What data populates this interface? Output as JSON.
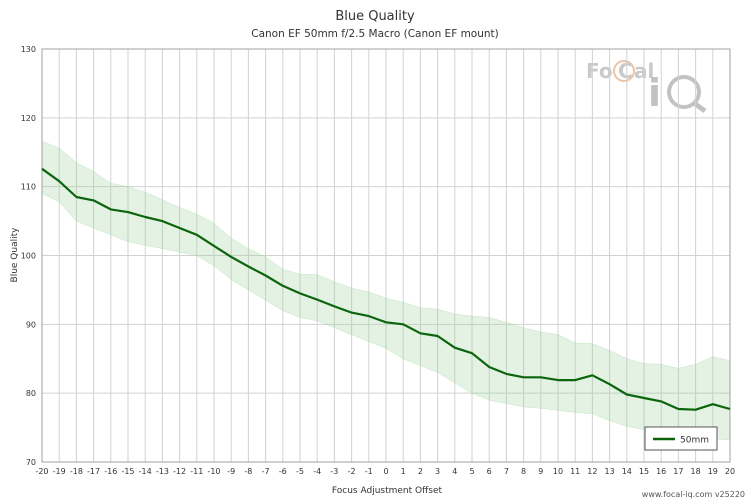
{
  "chart_data": {
    "type": "line",
    "title": "Blue Quality",
    "subtitle": "Canon EF 50mm f/2.5 Macro (Canon EF mount)",
    "xlabel": "Focus Adjustment Offset",
    "ylabel": "Blue Quality",
    "xlim": [
      -20,
      20
    ],
    "ylim": [
      70,
      130
    ],
    "yticks": [
      70,
      80,
      90,
      100,
      110,
      120,
      130
    ],
    "x": [
      -20,
      -19,
      -18,
      -17,
      -16,
      -15,
      -14,
      -13,
      -12,
      -11,
      -10,
      -9,
      -8,
      -7,
      -6,
      -5,
      -4,
      -3,
      -2,
      -1,
      0,
      1,
      2,
      3,
      4,
      5,
      6,
      7,
      8,
      9,
      10,
      11,
      12,
      13,
      14,
      15,
      16,
      17,
      18,
      19,
      20
    ],
    "series": [
      {
        "name": "50mm",
        "color": "#0c640c",
        "values": [
          112.6,
          110.8,
          108.5,
          108.0,
          106.7,
          106.3,
          105.6,
          105.0,
          104.0,
          103.0,
          101.4,
          99.8,
          98.4,
          97.1,
          95.6,
          94.5,
          93.6,
          92.6,
          91.7,
          91.2,
          90.3,
          90.0,
          88.7,
          88.3,
          86.6,
          85.8,
          83.8,
          82.8,
          82.3,
          82.3,
          81.9,
          81.9,
          82.6,
          81.3,
          79.8,
          79.3,
          78.8,
          77.7,
          77.6,
          78.4,
          77.7
        ],
        "upper": [
          116.6,
          115.6,
          113.5,
          112.2,
          110.5,
          110.0,
          109.2,
          108.1,
          107.0,
          106.0,
          104.7,
          102.5,
          101.0,
          99.8,
          98.0,
          97.3,
          97.2,
          96.2,
          95.3,
          94.7,
          93.8,
          93.2,
          92.4,
          92.2,
          91.5,
          91.2,
          91.0,
          90.3,
          89.5,
          88.9,
          88.5,
          87.3,
          87.2,
          86.2,
          85.0,
          84.3,
          84.2,
          83.6,
          84.2,
          85.3,
          84.7
        ],
        "lower": [
          109.0,
          107.8,
          105.0,
          104.0,
          103.0,
          102.0,
          101.5,
          101.0,
          100.5,
          100.0,
          98.5,
          96.5,
          95.0,
          93.5,
          92.0,
          91.0,
          90.5,
          89.5,
          88.5,
          87.5,
          86.5,
          85.0,
          84.0,
          83.0,
          81.5,
          80.0,
          79.0,
          78.5,
          78.0,
          77.8,
          77.5,
          77.2,
          77.0,
          76.0,
          75.2,
          74.7,
          74.2,
          73.9,
          73.6,
          73.4,
          73.2
        ]
      }
    ],
    "band_color": "#9bcf9b",
    "grid": true,
    "legend": "bottom-right"
  },
  "watermark": {
    "brand": "FoCal iQ",
    "footer": "www.focal-iq.com  v25220"
  }
}
